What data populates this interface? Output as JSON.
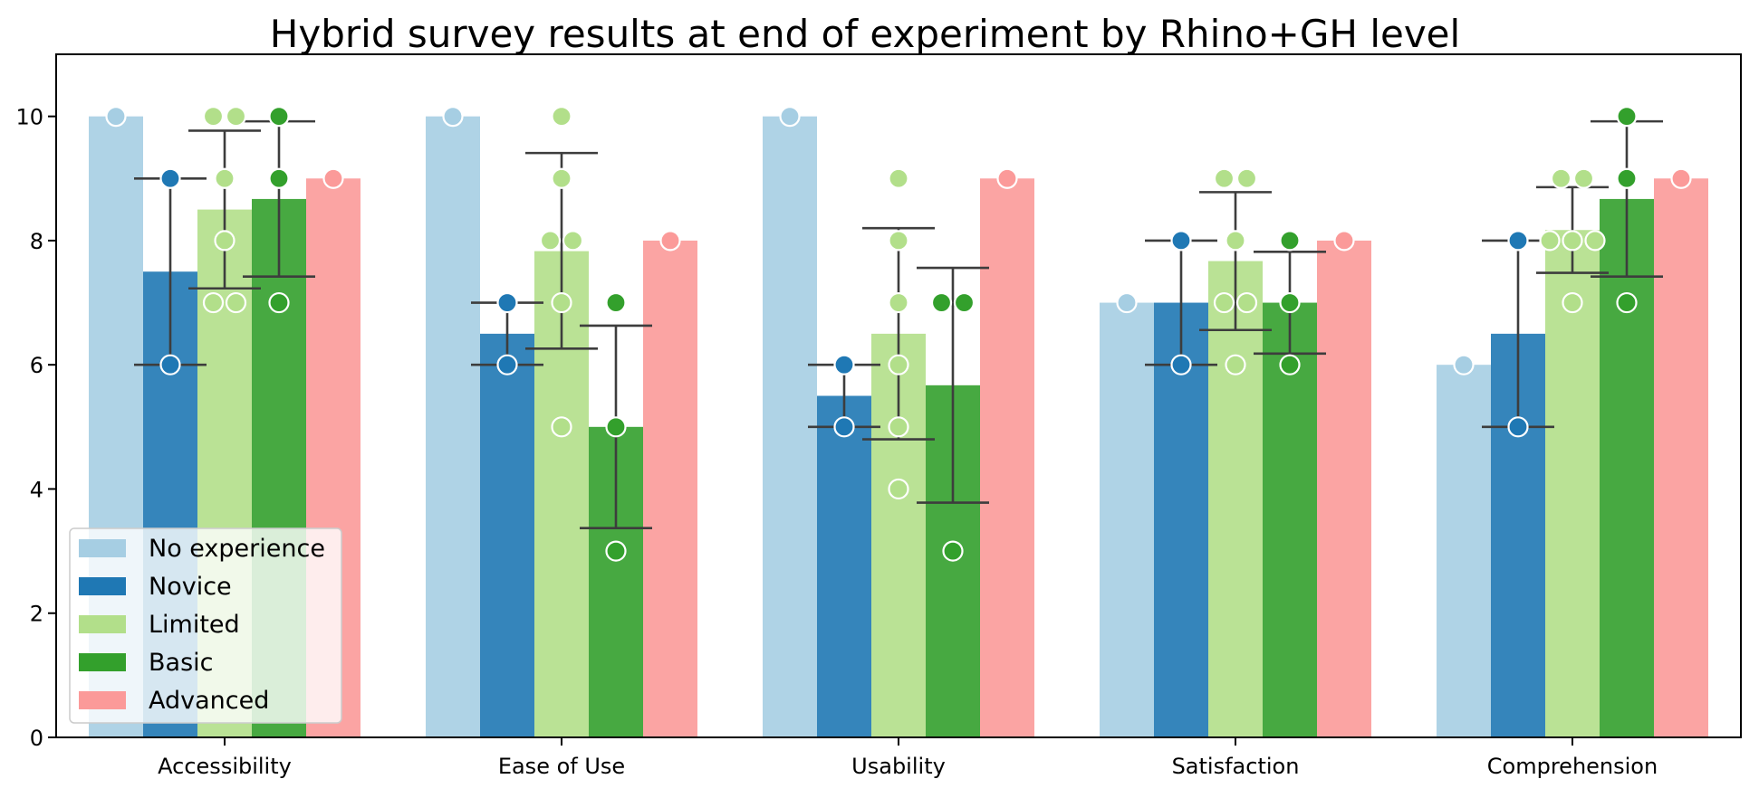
{
  "chart_data": {
    "type": "bar",
    "title": "Hybrid survey results at end of experiment by Rhino+GH level",
    "xlabel": "",
    "ylabel": "",
    "ylim": [
      0,
      11
    ],
    "yticks": [
      0,
      2,
      4,
      6,
      8,
      10
    ],
    "categories": [
      "Accessibility",
      "Ease of Use",
      "Usability",
      "Satisfaction",
      "Comprehension"
    ],
    "legend_position": "lower-left",
    "grid": false,
    "series": [
      {
        "name": "No experience",
        "color": "#a6cee3",
        "values": [
          10,
          10,
          10,
          7,
          6
        ],
        "points": [
          [
            10
          ],
          [
            10
          ],
          [
            10
          ],
          [
            7
          ],
          [
            6
          ]
        ],
        "error": [
          null,
          null,
          null,
          null,
          null
        ]
      },
      {
        "name": "Novice",
        "color": "#1f78b4",
        "values": [
          7.5,
          6.5,
          5.5,
          7.0,
          6.5
        ],
        "points": [
          [
            9,
            6
          ],
          [
            7,
            6
          ],
          [
            6,
            5
          ],
          [
            8,
            6
          ],
          [
            8,
            5
          ]
        ],
        "error": [
          [
            6.0,
            9.0
          ],
          [
            6.0,
            7.0
          ],
          [
            5.0,
            6.0
          ],
          [
            6.0,
            8.0
          ],
          [
            5.0,
            8.0
          ]
        ]
      },
      {
        "name": "Limited",
        "color": "#b2df8a",
        "values": [
          8.5,
          7.83,
          6.5,
          7.67,
          8.17
        ],
        "points": [
          [
            10,
            10,
            9,
            8,
            7,
            7
          ],
          [
            10,
            9,
            8,
            8,
            7,
            5
          ],
          [
            9,
            8,
            7,
            6,
            5,
            4
          ],
          [
            9,
            9,
            8,
            7,
            7,
            6
          ],
          [
            9,
            9,
            8,
            8,
            8,
            7
          ]
        ],
        "error": [
          [
            7.23,
            9.77
          ],
          [
            6.26,
            9.41
          ],
          [
            4.8,
            8.2
          ],
          [
            6.56,
            8.78
          ],
          [
            7.48,
            8.86
          ]
        ]
      },
      {
        "name": "Basic",
        "color": "#33a02c",
        "values": [
          8.67,
          5.0,
          5.67,
          7.0,
          8.67
        ],
        "points": [
          [
            10,
            9,
            7
          ],
          [
            7,
            5,
            3
          ],
          [
            7,
            7,
            3
          ],
          [
            8,
            7,
            6
          ],
          [
            10,
            9,
            7
          ]
        ],
        "error": [
          [
            7.42,
            9.92
          ],
          [
            3.37,
            6.63
          ],
          [
            3.78,
            7.56
          ],
          [
            6.18,
            7.82
          ],
          [
            7.42,
            9.92
          ]
        ]
      },
      {
        "name": "Advanced",
        "color": "#fb9a99",
        "values": [
          9,
          8,
          9,
          8,
          9
        ],
        "points": [
          [
            9
          ],
          [
            8
          ],
          [
            9
          ],
          [
            8
          ],
          [
            9
          ]
        ],
        "error": [
          null,
          null,
          null,
          null,
          null
        ]
      }
    ]
  }
}
